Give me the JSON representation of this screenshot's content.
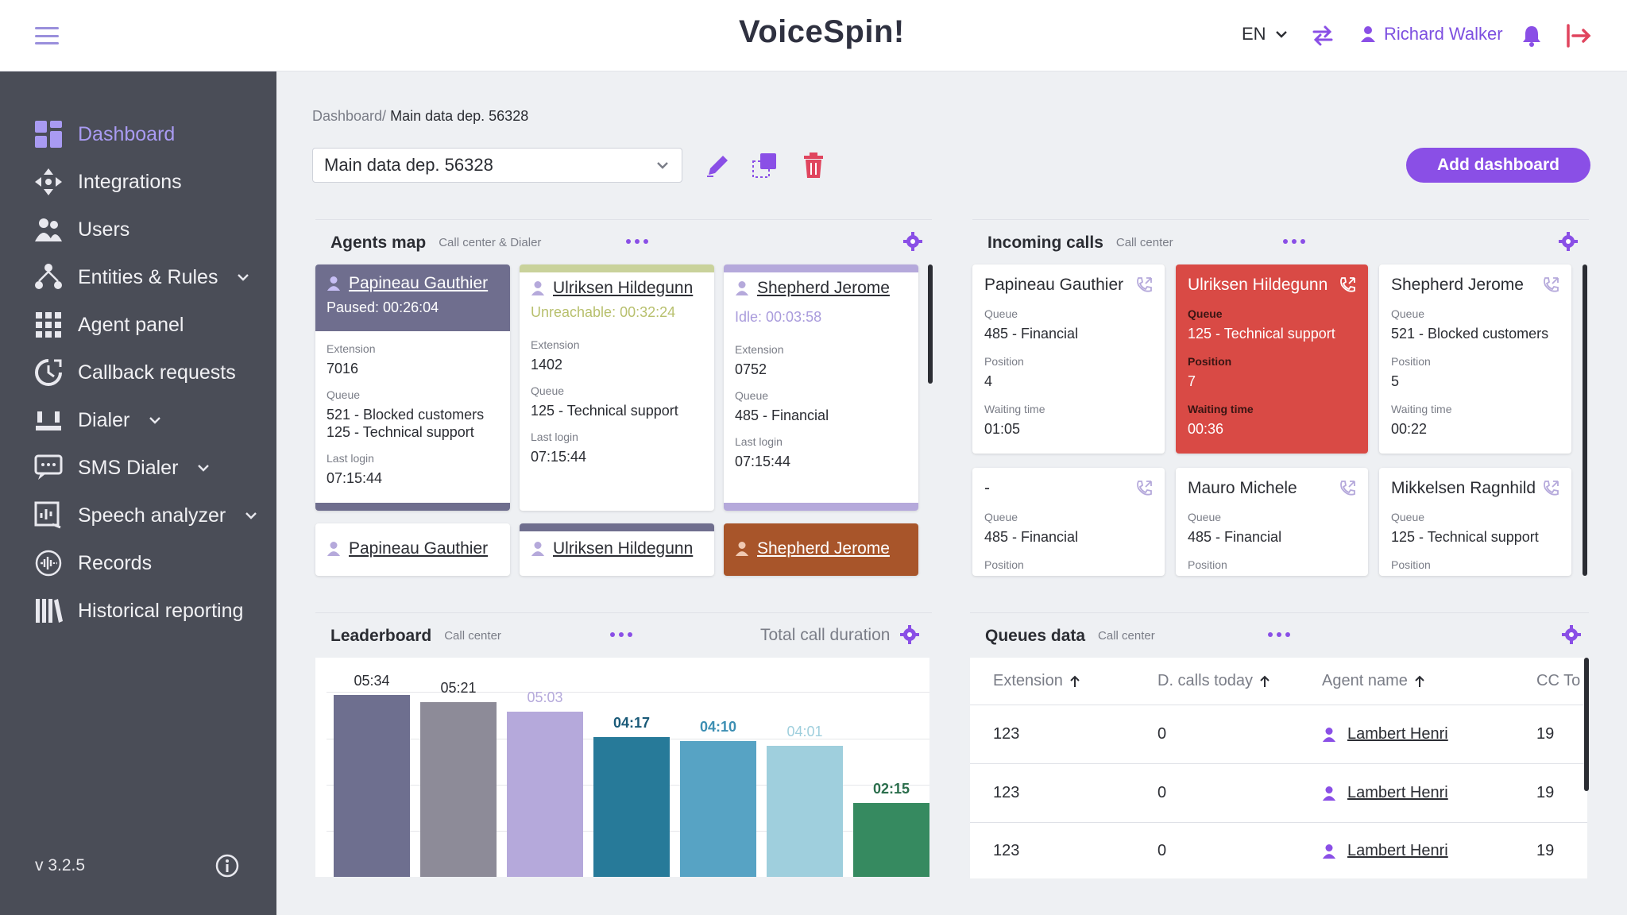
{
  "header": {
    "logo": "VoiceSpin!",
    "language": "EN",
    "user_name": "Richard Walker"
  },
  "sidebar": {
    "items": [
      {
        "label": "Dashboard",
        "icon": "dashboard-icon"
      },
      {
        "label": "Integrations",
        "icon": "integrations-icon"
      },
      {
        "label": "Users",
        "icon": "users-icon"
      },
      {
        "label": "Entities & Rules",
        "icon": "entities-icon"
      },
      {
        "label": "Agent panel",
        "icon": "agent-panel-icon"
      },
      {
        "label": "Callback requests",
        "icon": "callback-icon"
      },
      {
        "label": "Dialer",
        "icon": "dialer-icon"
      },
      {
        "label": "SMS Dialer",
        "icon": "sms-dialer-icon"
      },
      {
        "label": "Speech analyzer",
        "icon": "speech-analyzer-icon"
      },
      {
        "label": "Records",
        "icon": "records-icon"
      },
      {
        "label": "Historical reporting",
        "icon": "historical-reporting-icon"
      }
    ],
    "version": "v 3.2.5"
  },
  "breadcrumb": {
    "root": "Dashboard/",
    "current": "Main data dep. 56328"
  },
  "dashboard_select": {
    "value": "Main data dep. 56328"
  },
  "add_dashboard_label": "Add dashboard",
  "agents_map": {
    "title": "Agents map",
    "subtitle": "Call center & Dialer",
    "labels": {
      "extension": "Extension",
      "queue": "Queue",
      "last_login": "Last login"
    },
    "cards": [
      {
        "name": "Papineau Gauthier",
        "status": "Paused: 00:26:04",
        "extension": "7016",
        "queue1": "521 - Blocked customers",
        "queue2": "125 - Technical support",
        "last_login": "07:15:44"
      },
      {
        "name": "Ulriksen Hildegunn",
        "status": "Unreachable: 00:32:24",
        "extension": "1402",
        "queue1": "125 - Technical support",
        "last_login": "07:15:44"
      },
      {
        "name": "Shepherd Jerome",
        "status": "Idle: 00:03:58",
        "extension": "0752",
        "queue1": "485 - Financial",
        "last_login": "07:15:44"
      },
      {
        "name": "Papineau Gauthier"
      },
      {
        "name": "Ulriksen Hildegunn"
      },
      {
        "name": "Shepherd Jerome"
      }
    ]
  },
  "incoming_calls": {
    "title": "Incoming calls",
    "subtitle": "Call center",
    "labels": {
      "queue": "Queue",
      "position": "Position",
      "waiting_time": "Waiting time"
    },
    "cards": [
      {
        "name": "Papineau Gauthier",
        "queue": "485 - Financial",
        "position": "4",
        "waiting": "01:05"
      },
      {
        "name": "Ulriksen Hildegunn",
        "queue": "125 - Technical support",
        "position": "7",
        "waiting": "00:36"
      },
      {
        "name": "Shepherd Jerome",
        "queue": "521 - Blocked customers",
        "position": "5",
        "waiting": "00:22"
      },
      {
        "name": "-",
        "queue": "485 - Financial"
      },
      {
        "name": "Mauro Michele",
        "queue": "485 - Financial"
      },
      {
        "name": "Mikkelsen Ragnhild",
        "queue": "125 - Technical support"
      }
    ]
  },
  "leaderboard": {
    "title": "Leaderboard",
    "subtitle": "Call center",
    "metric": "Total call duration"
  },
  "chart_data": {
    "type": "bar",
    "categories": [
      "1",
      "2",
      "3",
      "4",
      "5",
      "6",
      "7"
    ],
    "values": [
      334,
      321,
      303,
      257,
      250,
      241,
      135
    ],
    "labels": [
      "05:34",
      "05:21",
      "05:03",
      "04:17",
      "04:10",
      "04:01",
      "02:15"
    ],
    "colors": [
      "#6e6f8f",
      "#8d8b98",
      "#b5a9db",
      "#277a99",
      "#57a3c4",
      "#9fcfdd",
      "#368a60"
    ],
    "label_colors": [
      "#2b2d33",
      "#2b2d33",
      "#b5a9db",
      "#1a5a78",
      "#3d8fb3",
      "#9fcfdd",
      "#2b6e4c"
    ],
    "ylim": [
      0,
      350
    ],
    "grid": true
  },
  "queues_data": {
    "title": "Queues data",
    "subtitle": "Call center",
    "columns": [
      "Extension",
      "D. calls today",
      "Agent name",
      "CC To"
    ],
    "rows": [
      {
        "extension": "123",
        "calls": "0",
        "agent": "Lambert Henri",
        "cc": "19"
      },
      {
        "extension": "123",
        "calls": "0",
        "agent": "Lambert Henri",
        "cc": "19"
      },
      {
        "extension": "123",
        "calls": "0",
        "agent": "Lambert Henri",
        "cc": "19"
      }
    ]
  },
  "colors": {
    "accent": "#8a4fe6",
    "sidebar_bg": "#4a4d57",
    "paused": "#6f6e8e",
    "unreachable": "#c9d29b",
    "idle": "#b5a9db",
    "busy": "#a8552a",
    "red": "#d94a45"
  }
}
